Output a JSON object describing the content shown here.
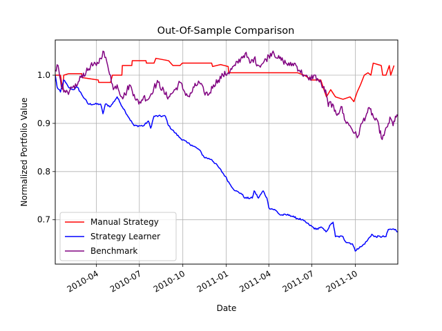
{
  "chart_data": {
    "type": "line",
    "title": "Out-Of-Sample Comparison",
    "xlabel": "Date",
    "ylabel": "Normalized Portfolio Value",
    "xlim": [
      "2010-01-04",
      "2011-12-30"
    ],
    "ylim": [
      0.608,
      1.073
    ],
    "grid": true,
    "legend_position": "lower-left",
    "x_ticks": [
      "2010-04-01",
      "2010-07-01",
      "2010-10-01",
      "2011-01-01",
      "2011-04-01",
      "2011-07-01",
      "2011-10-01"
    ],
    "x_tick_labels": [
      "2010-04",
      "2010-07",
      "2010-10",
      "2011-01",
      "2011-04",
      "2011-07",
      "2011-10"
    ],
    "y_ticks": [
      0.7,
      0.8,
      0.9,
      1.0
    ],
    "y_tick_labels": [
      "0.7",
      "0.8",
      "0.9",
      "1.0"
    ],
    "series": [
      {
        "name": "Manual Strategy",
        "color": "#ff0000",
        "points": [
          [
            "2010-01-04",
            1.0
          ],
          [
            "2010-01-15",
            1.0
          ],
          [
            "2010-01-20",
            0.97
          ],
          [
            "2010-01-22",
            1.0
          ],
          [
            "2010-02-01",
            1.003
          ],
          [
            "2010-03-01",
            1.003
          ],
          [
            "2010-03-02",
            0.995
          ],
          [
            "2010-04-05",
            0.99
          ],
          [
            "2010-04-06",
            0.985
          ],
          [
            "2010-05-01",
            0.985
          ],
          [
            "2010-05-05",
            1.0
          ],
          [
            "2010-05-25",
            1.0
          ],
          [
            "2010-05-26",
            1.02
          ],
          [
            "2010-06-15",
            1.02
          ],
          [
            "2010-06-16",
            1.03
          ],
          [
            "2010-07-15",
            1.03
          ],
          [
            "2010-07-16",
            1.025
          ],
          [
            "2010-08-01",
            1.025
          ],
          [
            "2010-08-05",
            1.035
          ],
          [
            "2010-09-01",
            1.03
          ],
          [
            "2010-09-10",
            1.02
          ],
          [
            "2010-09-25",
            1.02
          ],
          [
            "2010-09-30",
            1.025
          ],
          [
            "2010-12-01",
            1.025
          ],
          [
            "2010-12-03",
            1.018
          ],
          [
            "2010-12-20",
            1.022
          ],
          [
            "2011-01-05",
            1.018
          ],
          [
            "2011-01-06",
            1.005
          ],
          [
            "2011-06-01",
            1.005
          ],
          [
            "2011-06-15",
            1.0
          ],
          [
            "2011-07-01",
            0.99
          ],
          [
            "2011-07-20",
            0.99
          ],
          [
            "2011-07-25",
            0.975
          ],
          [
            "2011-08-01",
            0.955
          ],
          [
            "2011-08-10",
            0.97
          ],
          [
            "2011-08-20",
            0.955
          ],
          [
            "2011-09-05",
            0.95
          ],
          [
            "2011-09-20",
            0.955
          ],
          [
            "2011-09-28",
            0.945
          ],
          [
            "2011-10-05",
            0.965
          ],
          [
            "2011-10-12",
            0.98
          ],
          [
            "2011-10-20",
            1.0
          ],
          [
            "2011-10-28",
            1.005
          ],
          [
            "2011-11-03",
            1.0
          ],
          [
            "2011-11-08",
            1.025
          ],
          [
            "2011-11-25",
            1.02
          ],
          [
            "2011-11-28",
            1.0
          ],
          [
            "2011-12-05",
            1.0
          ],
          [
            "2011-12-12",
            1.02
          ],
          [
            "2011-12-15",
            1.0
          ],
          [
            "2011-12-22",
            1.02
          ]
        ]
      },
      {
        "name": "Strategy Learner",
        "color": "#0000ff",
        "points": [
          [
            "2010-01-04",
            1.0
          ],
          [
            "2010-01-08",
            0.975
          ],
          [
            "2010-01-15",
            0.965
          ],
          [
            "2010-01-22",
            0.99
          ],
          [
            "2010-02-01",
            0.975
          ],
          [
            "2010-02-10",
            0.97
          ],
          [
            "2010-02-20",
            0.975
          ],
          [
            "2010-03-01",
            0.96
          ],
          [
            "2010-03-15",
            0.94
          ],
          [
            "2010-04-10",
            0.94
          ],
          [
            "2010-04-15",
            0.92
          ],
          [
            "2010-04-20",
            0.94
          ],
          [
            "2010-05-01",
            0.935
          ],
          [
            "2010-05-15",
            0.955
          ],
          [
            "2010-05-20",
            0.945
          ],
          [
            "2010-06-01",
            0.925
          ],
          [
            "2010-06-10",
            0.91
          ],
          [
            "2010-06-20",
            0.895
          ],
          [
            "2010-07-10",
            0.895
          ],
          [
            "2010-07-20",
            0.905
          ],
          [
            "2010-07-25",
            0.89
          ],
          [
            "2010-08-01",
            0.915
          ],
          [
            "2010-08-25",
            0.915
          ],
          [
            "2010-09-01",
            0.895
          ],
          [
            "2010-09-15",
            0.88
          ],
          [
            "2010-09-25",
            0.87
          ],
          [
            "2010-10-10",
            0.86
          ],
          [
            "2010-10-20",
            0.855
          ],
          [
            "2010-11-05",
            0.845
          ],
          [
            "2010-11-15",
            0.83
          ],
          [
            "2010-12-01",
            0.825
          ],
          [
            "2010-12-15",
            0.81
          ],
          [
            "2010-12-30",
            0.79
          ],
          [
            "2011-01-08",
            0.775
          ],
          [
            "2011-01-20",
            0.76
          ],
          [
            "2011-02-01",
            0.755
          ],
          [
            "2011-02-10",
            0.745
          ],
          [
            "2011-02-25",
            0.745
          ],
          [
            "2011-03-01",
            0.76
          ],
          [
            "2011-03-10",
            0.745
          ],
          [
            "2011-03-20",
            0.76
          ],
          [
            "2011-03-28",
            0.745
          ],
          [
            "2011-04-01",
            0.725
          ],
          [
            "2011-04-15",
            0.72
          ],
          [
            "2011-04-25",
            0.71
          ],
          [
            "2011-05-15",
            0.71
          ],
          [
            "2011-05-25",
            0.705
          ],
          [
            "2011-06-10",
            0.7
          ],
          [
            "2011-06-25",
            0.69
          ],
          [
            "2011-07-10",
            0.68
          ],
          [
            "2011-07-20",
            0.685
          ],
          [
            "2011-07-31",
            0.675
          ],
          [
            "2011-08-10",
            0.69
          ],
          [
            "2011-08-15",
            0.695
          ],
          [
            "2011-08-20",
            0.665
          ],
          [
            "2011-09-05",
            0.665
          ],
          [
            "2011-09-10",
            0.655
          ],
          [
            "2011-09-25",
            0.65
          ],
          [
            "2011-10-01",
            0.635
          ],
          [
            "2011-10-05",
            0.64
          ],
          [
            "2011-10-15",
            0.645
          ],
          [
            "2011-10-25",
            0.655
          ],
          [
            "2011-11-05",
            0.67
          ],
          [
            "2011-11-10",
            0.665
          ],
          [
            "2011-12-05",
            0.665
          ],
          [
            "2011-12-10",
            0.68
          ],
          [
            "2011-12-25",
            0.68
          ],
          [
            "2011-12-30",
            0.675
          ]
        ]
      },
      {
        "name": "Benchmark",
        "color": "#800080",
        "points": [
          [
            "2010-01-04",
            1.01
          ],
          [
            "2010-01-10",
            1.02
          ],
          [
            "2010-01-15",
            0.99
          ],
          [
            "2010-01-22",
            0.965
          ],
          [
            "2010-02-01",
            0.96
          ],
          [
            "2010-02-10",
            0.975
          ],
          [
            "2010-02-20",
            0.98
          ],
          [
            "2010-03-01",
            1.0
          ],
          [
            "2010-03-10",
            1.005
          ],
          [
            "2010-03-20",
            1.02
          ],
          [
            "2010-04-01",
            1.02
          ],
          [
            "2010-04-10",
            1.035
          ],
          [
            "2010-04-15",
            1.05
          ],
          [
            "2010-04-25",
            1.02
          ],
          [
            "2010-05-01",
            1.0
          ],
          [
            "2010-05-07",
            0.97
          ],
          [
            "2010-05-15",
            0.98
          ],
          [
            "2010-05-25",
            0.955
          ],
          [
            "2010-06-01",
            0.96
          ],
          [
            "2010-06-10",
            0.98
          ],
          [
            "2010-06-20",
            0.96
          ],
          [
            "2010-06-30",
            0.94
          ],
          [
            "2010-07-10",
            0.955
          ],
          [
            "2010-07-20",
            0.95
          ],
          [
            "2010-08-01",
            0.975
          ],
          [
            "2010-08-10",
            0.985
          ],
          [
            "2010-08-25",
            0.96
          ],
          [
            "2010-09-01",
            0.955
          ],
          [
            "2010-09-15",
            0.97
          ],
          [
            "2010-09-25",
            0.985
          ],
          [
            "2010-10-05",
            0.965
          ],
          [
            "2010-10-15",
            0.955
          ],
          [
            "2010-10-25",
            0.975
          ],
          [
            "2010-11-05",
            0.985
          ],
          [
            "2010-11-15",
            0.965
          ],
          [
            "2010-11-25",
            0.96
          ],
          [
            "2010-12-05",
            0.98
          ],
          [
            "2010-12-15",
            0.99
          ],
          [
            "2010-12-25",
            1.0
          ],
          [
            "2011-01-05",
            1.005
          ],
          [
            "2011-01-20",
            1.02
          ],
          [
            "2011-02-01",
            1.035
          ],
          [
            "2011-02-10",
            1.045
          ],
          [
            "2011-02-20",
            1.025
          ],
          [
            "2011-03-01",
            1.035
          ],
          [
            "2011-03-10",
            1.02
          ],
          [
            "2011-03-20",
            1.025
          ],
          [
            "2011-04-01",
            1.04
          ],
          [
            "2011-04-10",
            1.05
          ],
          [
            "2011-04-20",
            1.035
          ],
          [
            "2011-05-01",
            1.03
          ],
          [
            "2011-05-15",
            1.02
          ],
          [
            "2011-05-25",
            1.025
          ],
          [
            "2011-06-05",
            1.01
          ],
          [
            "2011-06-15",
            1.0
          ],
          [
            "2011-06-25",
            0.99
          ],
          [
            "2011-07-05",
            1.0
          ],
          [
            "2011-07-15",
            0.99
          ],
          [
            "2011-07-25",
            0.975
          ],
          [
            "2011-08-01",
            0.96
          ],
          [
            "2011-08-05",
            0.935
          ],
          [
            "2011-08-10",
            0.945
          ],
          [
            "2011-08-18",
            0.925
          ],
          [
            "2011-08-25",
            0.92
          ],
          [
            "2011-09-01",
            0.935
          ],
          [
            "2011-09-10",
            0.905
          ],
          [
            "2011-09-20",
            0.895
          ],
          [
            "2011-09-30",
            0.88
          ],
          [
            "2011-10-05",
            0.87
          ],
          [
            "2011-10-15",
            0.9
          ],
          [
            "2011-10-25",
            0.92
          ],
          [
            "2011-11-01",
            0.93
          ],
          [
            "2011-11-10",
            0.91
          ],
          [
            "2011-11-20",
            0.895
          ],
          [
            "2011-11-25",
            0.87
          ],
          [
            "2011-12-01",
            0.875
          ],
          [
            "2011-12-10",
            0.9
          ],
          [
            "2011-12-15",
            0.91
          ],
          [
            "2011-12-20",
            0.895
          ],
          [
            "2011-12-25",
            0.915
          ],
          [
            "2011-12-30",
            0.915
          ]
        ]
      }
    ]
  }
}
